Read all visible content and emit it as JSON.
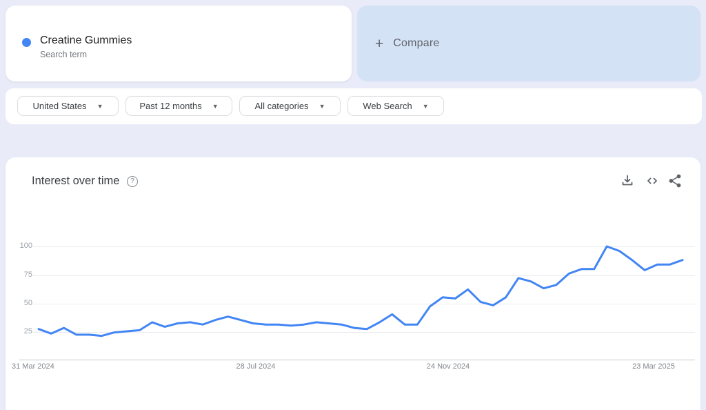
{
  "term_card": {
    "title": "Creatine Gummies",
    "subtitle": "Search term",
    "dot_color": "#4285f4"
  },
  "compare_card": {
    "plus": "+",
    "label": "Compare"
  },
  "filters": [
    {
      "label": "United States"
    },
    {
      "label": "Past 12 months"
    },
    {
      "label": "All categories"
    },
    {
      "label": "Web Search"
    }
  ],
  "chart_section": {
    "title": "Interest over time",
    "help_icon": "question-mark-circle-icon",
    "action_icons": [
      "download-icon",
      "embed-code-icon",
      "share-icon"
    ]
  },
  "chart_data": {
    "type": "line",
    "title": "Interest over time",
    "series": [
      {
        "name": "Creatine Gummies",
        "color": "#4285f4",
        "values": [
          27,
          23,
          28,
          22,
          22,
          21,
          24,
          25,
          26,
          33,
          29,
          32,
          33,
          31,
          35,
          38,
          35,
          32,
          31,
          31,
          30,
          31,
          33,
          32,
          31,
          28,
          27,
          33,
          40,
          31,
          31,
          47,
          55,
          54,
          62,
          51,
          48,
          55,
          72,
          69,
          63,
          66,
          76,
          80,
          80,
          100,
          96,
          88,
          79,
          84,
          84,
          88
        ]
      }
    ],
    "x_tick_labels": [
      "31 Mar 2024",
      "28 Jul 2024",
      "24 Nov 2024",
      "23 Mar 2025"
    ],
    "y_tick_labels": [
      "25",
      "50",
      "75",
      "100"
    ],
    "ylim": [
      0,
      100
    ],
    "x_axis": "weekly dates over past 12 months",
    "grid": true,
    "legend_position": "none"
  },
  "colors": {
    "page_bg": "#e9ecf8",
    "compare_bg": "#d4e2f6",
    "card_bg": "#ffffff",
    "line_blue": "#4285f4",
    "pill_border": "#dadce0",
    "muted_text": "#5f6368"
  }
}
